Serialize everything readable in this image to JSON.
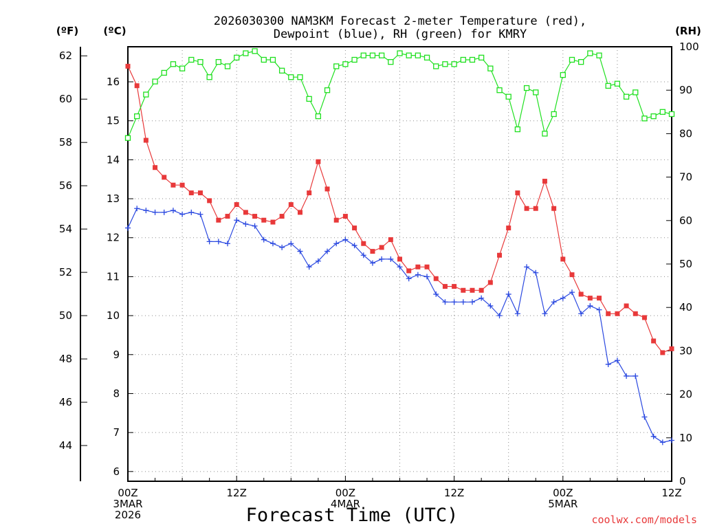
{
  "chart_data": {
    "type": "line",
    "title": "2026030300 NAM3KM Forecast 2-meter Temperature (red),",
    "subtitle": "Dewpoint (blue), RH (green) for KMRY",
    "xlabel": "Forecast Time (UTC)",
    "credit": "coolwx.com/models",
    "unit_labels": {
      "fahrenheit": "(ºF)",
      "celsius": "(ºC)",
      "rh": "(RH)"
    },
    "x_range_hours": [
      0,
      60
    ],
    "x_ticks": [
      {
        "hour": 0,
        "line1": "00Z",
        "line2": "3MAR",
        "line3": "2026"
      },
      {
        "hour": 12,
        "line1": "12Z",
        "line2": "",
        "line3": ""
      },
      {
        "hour": 24,
        "line1": "00Z",
        "line2": "4MAR",
        "line3": ""
      },
      {
        "hour": 36,
        "line1": "12Z",
        "line2": "",
        "line3": ""
      },
      {
        "hour": 48,
        "line1": "00Z",
        "line2": "5MAR",
        "line3": ""
      },
      {
        "hour": 60,
        "line1": "12Z",
        "line2": "",
        "line3": ""
      }
    ],
    "celsius_axis": {
      "range": [
        5.75,
        16.9
      ],
      "ticks": [
        "6",
        "7",
        "8",
        "9",
        "10",
        "11",
        "12",
        "13",
        "14",
        "15",
        "16"
      ]
    },
    "fahrenheit_axis": {
      "range": [
        42.35,
        62.42
      ],
      "ticks": [
        "44",
        "46",
        "48",
        "50",
        "52",
        "54",
        "56",
        "58",
        "60",
        "62"
      ]
    },
    "rh_axis": {
      "range": [
        0,
        100
      ],
      "ticks": [
        "0",
        "10",
        "20",
        "30",
        "40",
        "50",
        "60",
        "70",
        "80",
        "90",
        "100"
      ]
    },
    "series": [
      {
        "name": "Temperature",
        "units": "C",
        "color": "#e8393a",
        "marker": "filled-square",
        "values": [
          16.4,
          15.9,
          14.5,
          13.8,
          13.55,
          13.35,
          13.35,
          13.15,
          13.15,
          12.95,
          12.45,
          12.55,
          12.85,
          12.65,
          12.55,
          12.45,
          12.4,
          12.55,
          12.85,
          12.65,
          13.15,
          13.95,
          13.25,
          12.45,
          12.55,
          12.25,
          11.85,
          11.65,
          11.75,
          11.95,
          11.45,
          11.15,
          11.25,
          11.25,
          10.95,
          10.75,
          10.75,
          10.65,
          10.65,
          10.65,
          10.85,
          11.55,
          12.25,
          13.15,
          12.75,
          12.75,
          13.45,
          12.75,
          11.45,
          11.05,
          10.55,
          10.45,
          10.45,
          10.05,
          10.05,
          10.25,
          10.05,
          9.95,
          9.35,
          9.05,
          9.15
        ]
      },
      {
        "name": "Dewpoint",
        "units": "C",
        "color": "#2a48e0",
        "marker": "plus",
        "values": [
          12.25,
          12.75,
          12.7,
          12.65,
          12.65,
          12.7,
          12.6,
          12.65,
          12.6,
          11.9,
          11.9,
          11.85,
          12.45,
          12.35,
          12.3,
          11.95,
          11.85,
          11.75,
          11.85,
          11.65,
          11.25,
          11.4,
          11.65,
          11.85,
          11.95,
          11.8,
          11.55,
          11.35,
          11.45,
          11.45,
          11.25,
          10.95,
          11.05,
          11.0,
          10.55,
          10.35,
          10.35,
          10.35,
          10.35,
          10.45,
          10.25,
          10.0,
          10.55,
          10.05,
          11.25,
          11.1,
          10.05,
          10.35,
          10.45,
          10.6,
          10.05,
          10.25,
          10.15,
          8.75,
          8.85,
          8.45,
          8.45,
          7.4,
          6.9,
          6.75,
          6.8
        ]
      },
      {
        "name": "RH",
        "units": "%",
        "color": "#1ee01e",
        "marker": "open-square",
        "values": [
          79,
          84,
          89,
          92,
          94,
          96,
          95,
          97,
          96.5,
          93,
          96.5,
          95.5,
          97.5,
          98.5,
          99,
          97,
          97,
          94.5,
          93,
          93,
          88,
          84,
          90,
          95.5,
          96,
          97,
          98,
          98,
          98,
          96.5,
          98.5,
          98,
          98,
          97.5,
          95.5,
          96,
          96,
          97,
          97,
          97.5,
          95,
          90,
          88.5,
          81,
          90.5,
          89.5,
          80,
          84.5,
          93.5,
          97,
          96.5,
          98.5,
          98,
          91,
          91.5,
          88.5,
          89.5,
          83.5,
          84,
          85,
          84.5
        ]
      }
    ]
  }
}
